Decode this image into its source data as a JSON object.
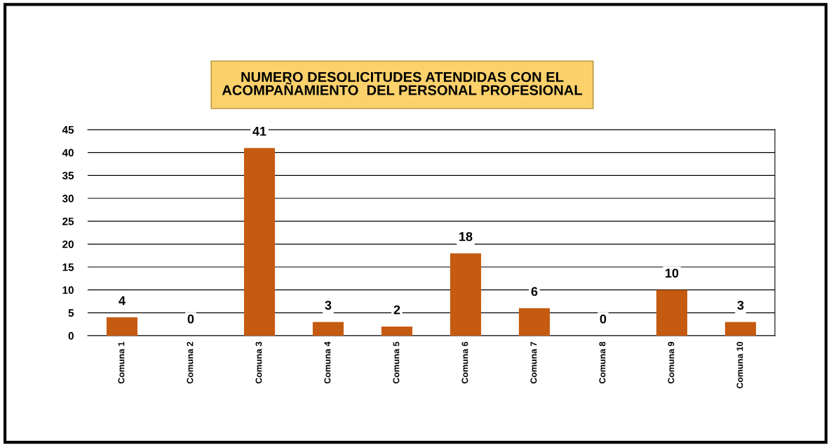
{
  "chart_data": {
    "type": "bar",
    "title": "NUMERO DESOLICITUDES ATENDIDAS CON EL\nACOMPAÑAMIENTO  DEL PERSONAL PROFESIONAL",
    "categories": [
      "Comuna 1",
      "Comuna 2",
      "Comuna 3",
      "Comuna 4",
      "Comuna 5",
      "Comuna 6",
      "Comuna 7",
      "Comuna 8",
      "Comuna 9",
      "Comuna 10"
    ],
    "values": [
      4,
      0,
      41,
      3,
      2,
      18,
      6,
      0,
      10,
      3
    ],
    "color": "#c55a11",
    "ylim": [
      0,
      45
    ],
    "yticks": [
      0,
      5,
      10,
      15,
      20,
      25,
      30,
      35,
      40,
      45
    ],
    "grid": "y",
    "data_labels": true
  }
}
